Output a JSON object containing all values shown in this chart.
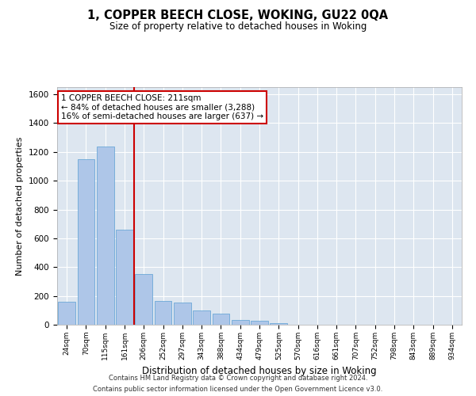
{
  "title": "1, COPPER BEECH CLOSE, WOKING, GU22 0QA",
  "subtitle": "Size of property relative to detached houses in Woking",
  "xlabel": "Distribution of detached houses by size in Woking",
  "ylabel": "Number of detached properties",
  "categories": [
    "24sqm",
    "70sqm",
    "115sqm",
    "161sqm",
    "206sqm",
    "252sqm",
    "297sqm",
    "343sqm",
    "388sqm",
    "434sqm",
    "479sqm",
    "525sqm",
    "570sqm",
    "616sqm",
    "661sqm",
    "707sqm",
    "752sqm",
    "798sqm",
    "843sqm",
    "889sqm",
    "934sqm"
  ],
  "values": [
    160,
    1150,
    1240,
    660,
    350,
    165,
    155,
    100,
    75,
    35,
    30,
    10,
    0,
    0,
    0,
    0,
    0,
    0,
    0,
    0,
    0
  ],
  "bar_color": "#aec6e8",
  "bar_edge_color": "#5a9fd4",
  "vline_index": 4,
  "vline_color": "#cc0000",
  "annotation_text": "1 COPPER BEECH CLOSE: 211sqm\n← 84% of detached houses are smaller (3,288)\n16% of semi-detached houses are larger (637) →",
  "annotation_box_color": "#ffffff",
  "annotation_box_edge": "#cc0000",
  "ylim": [
    0,
    1650
  ],
  "yticks": [
    0,
    200,
    400,
    600,
    800,
    1000,
    1200,
    1400,
    1600
  ],
  "bg_color": "#dde6f0",
  "footer1": "Contains HM Land Registry data © Crown copyright and database right 2024.",
  "footer2": "Contains public sector information licensed under the Open Government Licence v3.0."
}
